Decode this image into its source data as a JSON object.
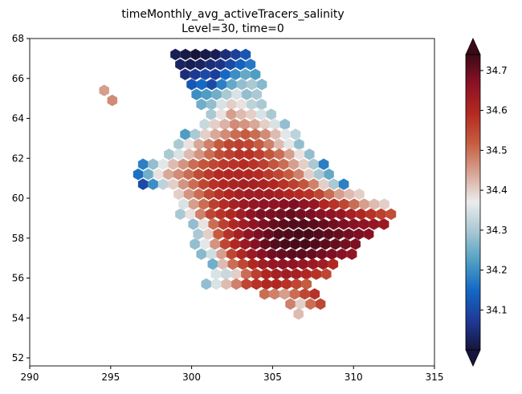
{
  "chart_data": {
    "type": "heatmap",
    "title": "timeMonthly_avg_activeTracers_salinity",
    "subtitle": "Level=30, time=0",
    "xlabel": "",
    "ylabel": "",
    "xlim": [
      290,
      315
    ],
    "ylim": [
      51.6,
      68
    ],
    "x_ticks": [
      "290",
      "295",
      "300",
      "305",
      "310",
      "315"
    ],
    "y_ticks": [
      "52",
      "54",
      "56",
      "58",
      "60",
      "62",
      "64",
      "66",
      "68"
    ],
    "grid": false,
    "colorbar": {
      "ticks": [
        "34.1",
        "34.2",
        "34.3",
        "34.4",
        "34.5",
        "34.6",
        "34.7"
      ],
      "vmin": 34.0,
      "vmax": 34.74,
      "extend": "both",
      "colormap": "balance",
      "stops": [
        "#17153b",
        "#1f3a96",
        "#1367c4",
        "#4f9fc4",
        "#a7c7d2",
        "#ececec",
        "#d7a494",
        "#c55d40",
        "#b42a22",
        "#8c1224",
        "#3c0a17"
      ]
    },
    "field": {
      "cell_size_deg": 0.62,
      "rows": [
        {
          "lat": 67.2,
          "lon_start": 299.0,
          "values": [
            34.02,
            34.01,
            34.0,
            34.01,
            34.02,
            34.05,
            34.08,
            34.12
          ]
        },
        {
          "lat": 66.7,
          "lon_start": 299.3,
          "values": [
            34.03,
            34.02,
            34.03,
            34.05,
            34.06,
            34.1,
            34.14,
            34.17
          ]
        },
        {
          "lat": 66.2,
          "lon_start": 299.6,
          "values": [
            34.05,
            34.07,
            34.1,
            34.08,
            34.15,
            34.2,
            34.24,
            34.22
          ]
        },
        {
          "lat": 65.7,
          "lon_start": 300.0,
          "values": [
            34.12,
            34.15,
            34.1,
            34.18,
            34.24,
            34.28,
            34.3,
            34.27
          ]
        },
        {
          "lat": 65.2,
          "lon_start": 300.3,
          "values": [
            34.2,
            34.22,
            34.25,
            34.3,
            34.35,
            34.28,
            34.3
          ]
        },
        {
          "lat": 64.7,
          "lon_start": 300.6,
          "values": [
            34.25,
            34.28,
            34.35,
            34.4,
            34.38,
            34.32,
            34.3
          ]
        },
        {
          "lat": 64.2,
          "lon_start": 301.2,
          "values": [
            34.3,
            34.38,
            34.45,
            34.42,
            34.4,
            34.35,
            34.3
          ]
        },
        {
          "lat": 63.7,
          "lon_start": 300.8,
          "values": [
            34.33,
            34.4,
            34.43,
            34.47,
            34.46,
            34.44,
            34.4,
            34.35,
            34.28
          ]
        },
        {
          "lat": 63.2,
          "lon_start": 299.6,
          "values": [
            34.22,
            34.3,
            34.4,
            34.44,
            34.47,
            34.5,
            34.52,
            34.5,
            34.47,
            34.42,
            34.36,
            34.32
          ]
        },
        {
          "lat": 62.7,
          "lon_start": 299.2,
          "values": [
            34.3,
            34.38,
            34.44,
            34.48,
            34.52,
            34.55,
            34.56,
            34.55,
            34.52,
            34.48,
            34.42,
            34.36,
            34.28
          ]
        },
        {
          "lat": 62.2,
          "lon_start": 298.6,
          "values": [
            34.3,
            34.35,
            34.42,
            34.46,
            34.5,
            34.54,
            34.56,
            34.58,
            34.58,
            34.56,
            34.53,
            34.5,
            34.45,
            34.38,
            34.28
          ]
        },
        {
          "lat": 61.7,
          "lon_start": 297.0,
          "values": [
            34.18,
            34.28,
            34.36,
            34.42,
            34.46,
            34.5,
            34.53,
            34.55,
            34.57,
            34.58,
            34.59,
            34.58,
            34.56,
            34.53,
            34.5,
            34.45,
            34.4,
            34.3,
            34.18
          ]
        },
        {
          "lat": 61.2,
          "lon_start": 296.7,
          "values": [
            34.16,
            34.25,
            34.38,
            34.44,
            34.47,
            34.5,
            34.54,
            34.57,
            34.59,
            34.6,
            34.6,
            34.6,
            34.59,
            34.57,
            34.55,
            34.52,
            34.48,
            34.4,
            34.3,
            34.24
          ]
        },
        {
          "lat": 60.7,
          "lon_start": 297.0,
          "values": [
            34.1,
            34.2,
            34.32,
            34.4,
            34.46,
            34.5,
            34.55,
            34.58,
            34.6,
            34.61,
            34.62,
            34.62,
            34.61,
            34.6,
            34.58,
            34.56,
            34.53,
            34.48,
            34.4,
            34.3,
            34.18
          ]
        },
        {
          "lat": 60.2,
          "lon_start": 299.2,
          "values": [
            34.4,
            34.46,
            34.5,
            34.55,
            34.58,
            34.6,
            34.62,
            34.63,
            34.63,
            34.63,
            34.62,
            34.6,
            34.59,
            34.58,
            34.55,
            34.5,
            34.45,
            34.42,
            34.4
          ]
        },
        {
          "lat": 59.7,
          "lon_start": 299.5,
          "values": [
            34.35,
            34.45,
            34.5,
            34.56,
            34.59,
            34.62,
            34.64,
            34.65,
            34.66,
            34.66,
            34.67,
            34.68,
            34.66,
            34.65,
            34.6,
            34.58,
            34.55,
            34.5,
            34.45,
            34.42,
            34.4
          ]
        },
        {
          "lat": 59.2,
          "lon_start": 299.3,
          "values": [
            34.3,
            34.38,
            34.48,
            34.55,
            34.58,
            34.6,
            34.63,
            34.66,
            34.68,
            34.68,
            34.69,
            34.7,
            34.69,
            34.68,
            34.67,
            34.66,
            34.65,
            34.62,
            34.6,
            34.58,
            34.56,
            34.54
          ]
        },
        {
          "lat": 58.7,
          "lon_start": 300.1,
          "values": [
            34.28,
            34.38,
            34.5,
            34.56,
            34.6,
            34.63,
            34.66,
            34.68,
            34.7,
            34.71,
            34.72,
            34.72,
            34.71,
            34.7,
            34.69,
            34.68,
            34.67,
            34.66,
            34.65,
            34.64
          ]
        },
        {
          "lat": 58.2,
          "lon_start": 300.4,
          "values": [
            34.3,
            34.4,
            34.52,
            34.58,
            34.62,
            34.66,
            34.68,
            34.7,
            34.72,
            34.72,
            34.73,
            34.73,
            34.72,
            34.71,
            34.7,
            34.69,
            34.68,
            34.67
          ]
        },
        {
          "lat": 57.7,
          "lon_start": 300.2,
          "values": [
            34.28,
            34.36,
            34.46,
            34.55,
            34.6,
            34.64,
            34.67,
            34.7,
            34.72,
            34.73,
            34.73,
            34.73,
            34.72,
            34.71,
            34.7,
            34.69,
            34.68
          ]
        },
        {
          "lat": 57.2,
          "lon_start": 300.6,
          "values": [
            34.27,
            34.34,
            34.45,
            34.55,
            34.6,
            34.64,
            34.67,
            34.69,
            34.7,
            34.71,
            34.71,
            34.7,
            34.69,
            34.68,
            34.67,
            34.66
          ]
        },
        {
          "lat": 56.7,
          "lon_start": 301.3,
          "values": [
            34.25,
            34.42,
            34.5,
            34.55,
            34.6,
            34.63,
            34.65,
            34.66,
            34.66,
            34.65,
            34.64,
            34.63,
            34.6
          ]
        },
        {
          "lat": 56.2,
          "lon_start": 301.5,
          "values": [
            34.35,
            34.33,
            34.4,
            34.5,
            34.56,
            34.6,
            34.62,
            34.63,
            34.62,
            34.6,
            34.58,
            34.55
          ]
        },
        {
          "lat": 55.7,
          "lon_start": 300.9,
          "values": [
            34.28,
            34.35,
            34.42,
            34.48,
            34.55,
            34.58,
            34.6,
            34.6,
            34.58,
            34.55,
            34.52
          ]
        },
        {
          "lat": 55.2,
          "lon_start": 304.5,
          "values": [
            34.5,
            34.48,
            34.45,
            34.5,
            34.55,
            34.58
          ]
        },
        {
          "lat": 54.7,
          "lon_start": 306.1,
          "values": [
            34.48,
            34.4,
            34.5,
            34.55
          ]
        },
        {
          "lat": 54.2,
          "lon_start": 306.6,
          "values": [
            34.42
          ]
        },
        {
          "lat": 65.4,
          "lon_start": 294.6,
          "values": [
            34.45
          ]
        },
        {
          "lat": 64.9,
          "lon_start": 295.1,
          "values": [
            34.47
          ]
        }
      ]
    }
  }
}
